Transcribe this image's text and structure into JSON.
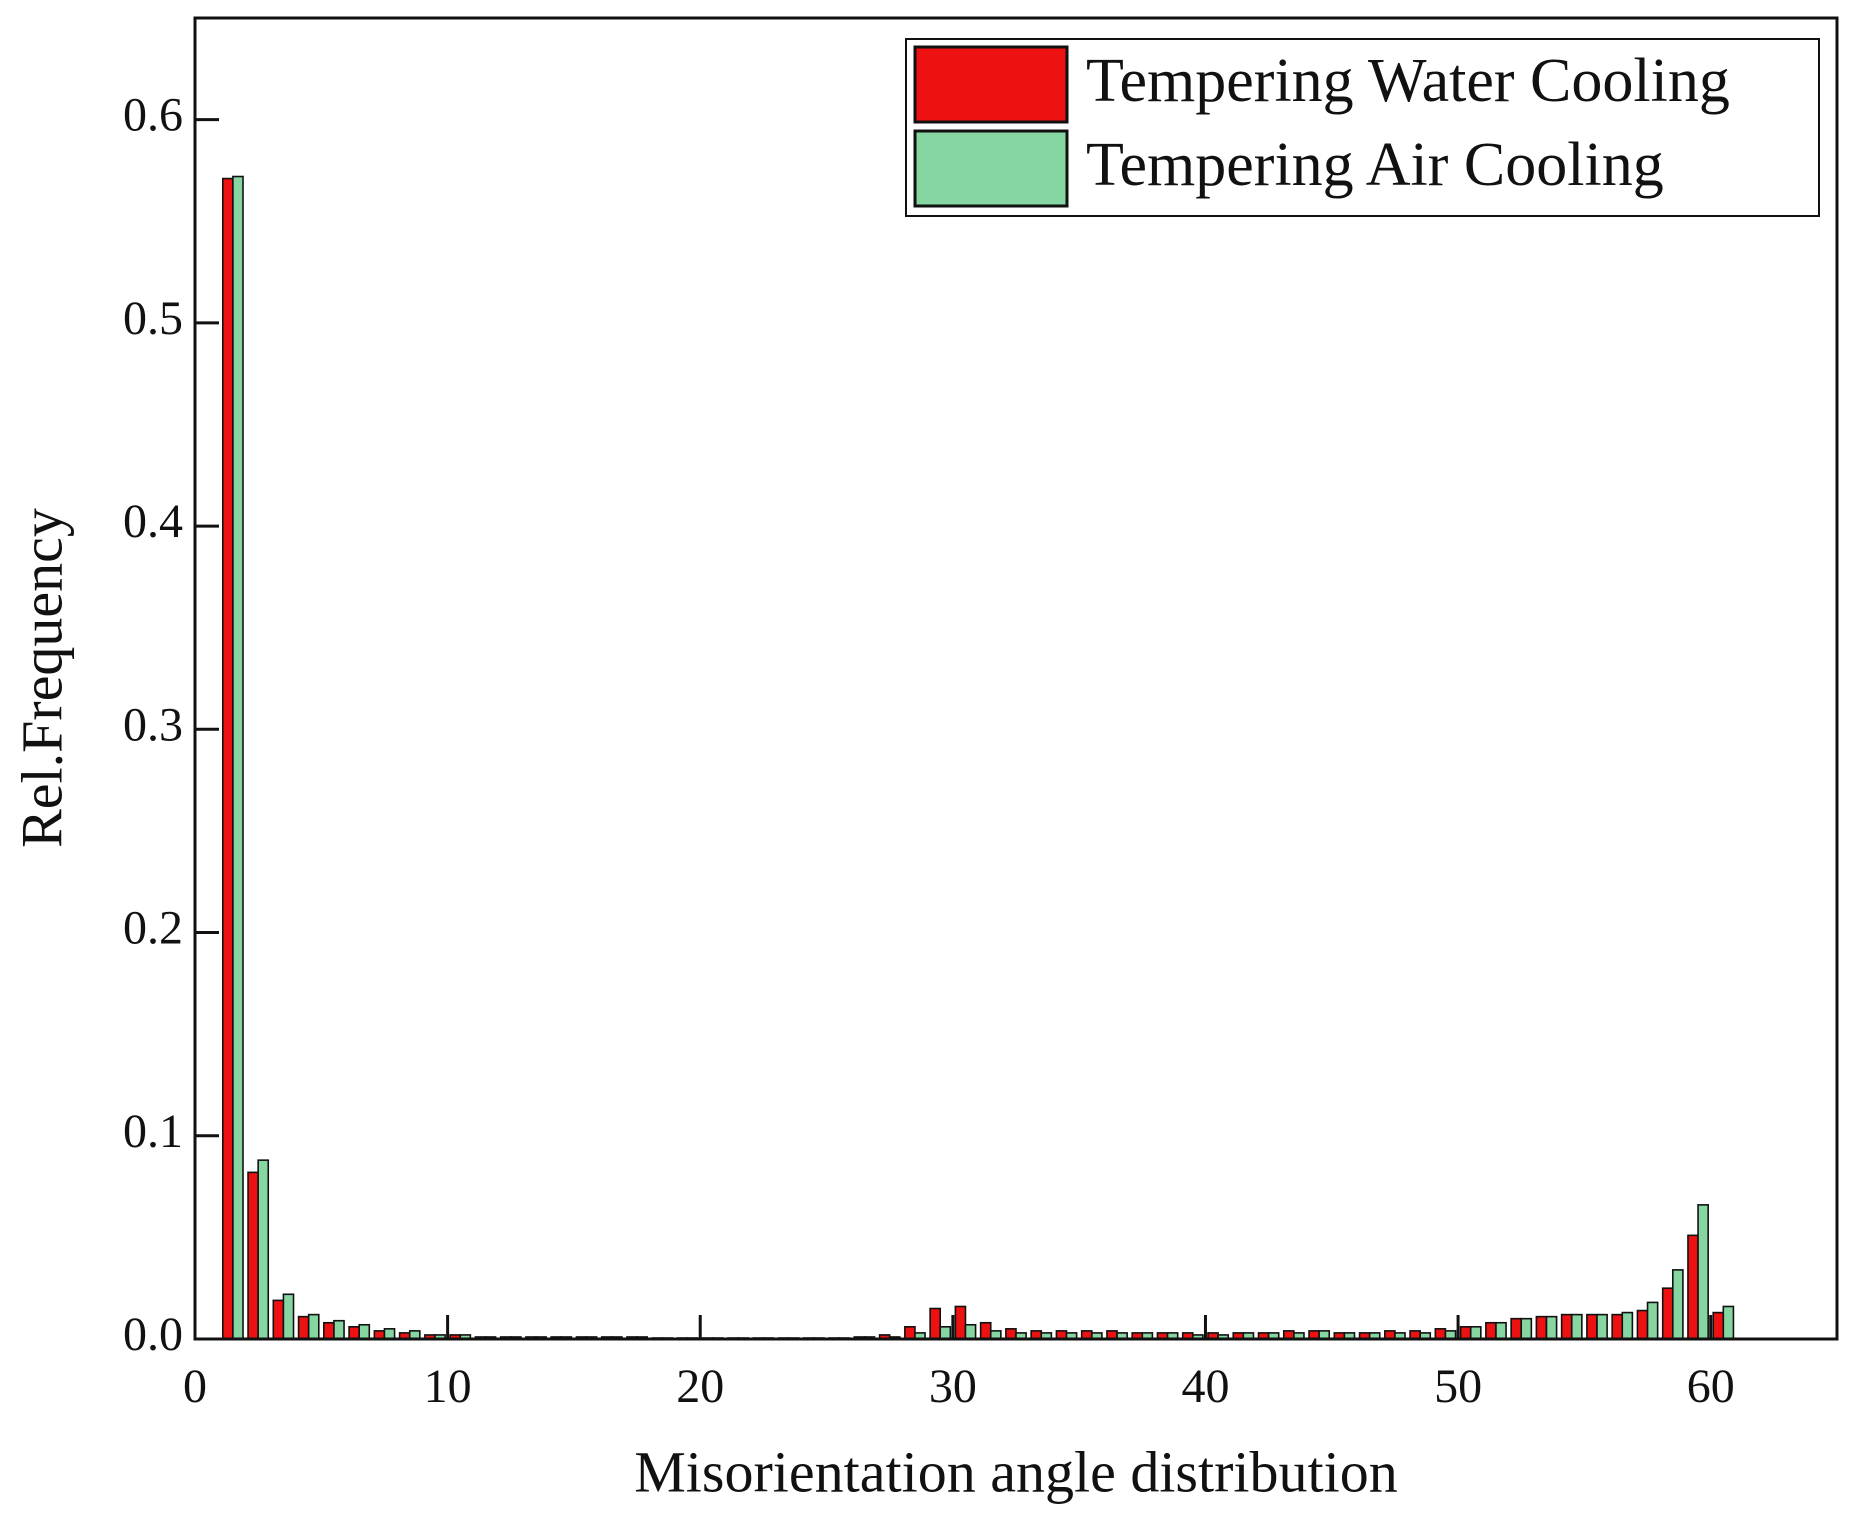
{
  "chart_data": {
    "type": "bar",
    "xlabel": "Misorientation angle distribution",
    "ylabel": "Rel.Frequency",
    "x": [
      1.5,
      2.5,
      3.5,
      4.5,
      5.5,
      6.5,
      7.5,
      8.5,
      9.5,
      10.5,
      11.5,
      12.5,
      13.5,
      14.5,
      15.5,
      16.5,
      17.5,
      18.5,
      19.5,
      20.5,
      21.5,
      22.5,
      23.5,
      24.5,
      25.5,
      26.5,
      27.5,
      28.5,
      29.5,
      30.5,
      31.5,
      32.5,
      33.5,
      34.5,
      35.5,
      36.5,
      37.5,
      38.5,
      39.5,
      40.5,
      41.5,
      42.5,
      43.5,
      44.5,
      45.5,
      46.5,
      47.5,
      48.5,
      49.5,
      50.5,
      51.5,
      52.5,
      53.5,
      54.5,
      55.5,
      56.5,
      57.5,
      58.5,
      59.5,
      60.5
    ],
    "series": [
      {
        "name": "Tempering Water Cooling",
        "color": "#ee1111",
        "values": [
          0.571,
          0.082,
          0.019,
          0.011,
          0.008,
          0.006,
          0.004,
          0.003,
          0.002,
          0.002,
          0.001,
          0.001,
          0.001,
          0.001,
          0.001,
          0.001,
          0.001,
          0.0005,
          0.0005,
          0.0005,
          0.0005,
          0.0005,
          0.0005,
          0.0005,
          0.0005,
          0.001,
          0.002,
          0.006,
          0.015,
          0.016,
          0.008,
          0.005,
          0.004,
          0.004,
          0.004,
          0.004,
          0.003,
          0.003,
          0.003,
          0.003,
          0.003,
          0.003,
          0.004,
          0.004,
          0.003,
          0.003,
          0.004,
          0.004,
          0.005,
          0.006,
          0.008,
          0.01,
          0.011,
          0.012,
          0.012,
          0.012,
          0.014,
          0.025,
          0.051,
          0.013
        ]
      },
      {
        "name": "Tempering Air Cooling",
        "color": "#85d6a0",
        "values": [
          0.572,
          0.088,
          0.022,
          0.012,
          0.009,
          0.007,
          0.005,
          0.004,
          0.002,
          0.002,
          0.001,
          0.001,
          0.001,
          0.001,
          0.001,
          0.001,
          0.001,
          0.0005,
          0.0005,
          0.0005,
          0.0005,
          0.0005,
          0.0005,
          0.0005,
          0.0005,
          0.001,
          0.001,
          0.003,
          0.006,
          0.007,
          0.004,
          0.003,
          0.003,
          0.003,
          0.003,
          0.003,
          0.003,
          0.003,
          0.002,
          0.002,
          0.003,
          0.003,
          0.003,
          0.004,
          0.003,
          0.003,
          0.003,
          0.003,
          0.004,
          0.006,
          0.008,
          0.01,
          0.011,
          0.012,
          0.012,
          0.013,
          0.018,
          0.034,
          0.066,
          0.016
        ]
      }
    ],
    "bar_width": 0.4,
    "xlim": [
      0,
      65
    ],
    "xticks": [
      0,
      10,
      20,
      30,
      40,
      50,
      60
    ],
    "ylim": [
      0,
      0.65
    ],
    "yticks": [
      {
        "value": 0,
        "label": "0.0"
      },
      0.1,
      0.2,
      0.3,
      0.4,
      0.5,
      0.6
    ],
    "grid": false,
    "legend": "upper right"
  }
}
